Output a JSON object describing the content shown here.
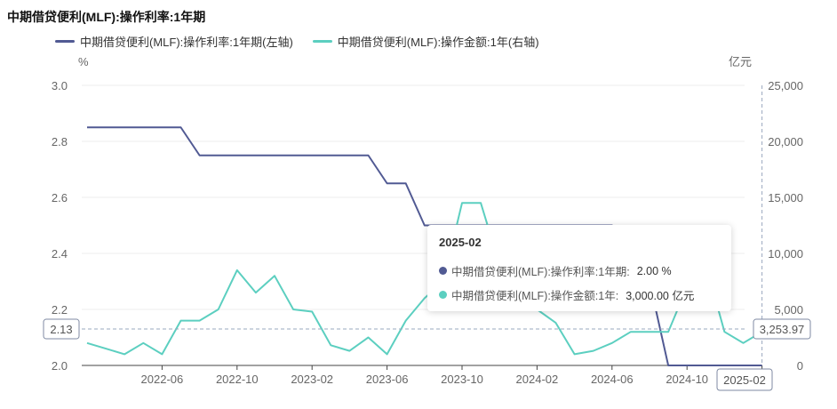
{
  "title": "中期借贷便利(MLF):操作利率:1年期",
  "colors": {
    "rate": "#515a93",
    "amount": "#5ccfc0",
    "axis": "#666666",
    "grid": "#eeeeee",
    "crosshair": "#9aa8bf"
  },
  "legend": [
    {
      "label": "中期借贷便利(MLF):操作利率:1年期(左轴)",
      "color": "#515a93"
    },
    {
      "label": "中期借贷便利(MLF):操作金额:1年(右轴)",
      "color": "#5ccfc0"
    }
  ],
  "tooltip": {
    "title": "2025-02",
    "rows": [
      {
        "label": "中期借贷便利(MLF):操作利率:1年期:",
        "value": "2.00 %",
        "color": "#515a93"
      },
      {
        "label": "中期借贷便利(MLF):操作金额:1年:",
        "value": "3,000.00 亿元",
        "color": "#5ccfc0"
      }
    ]
  },
  "pointer": {
    "left_label": "2.13",
    "right_label": "3,253.97",
    "x_label": "2025-02"
  },
  "chart_data": {
    "type": "line",
    "left_axis": {
      "unit": "%",
      "min": 2.0,
      "max": 3.0,
      "ticks": [
        "3.0",
        "2.8",
        "2.6",
        "2.4",
        "2.2",
        "2.0"
      ]
    },
    "right_axis": {
      "unit": "亿元",
      "min": 0,
      "max": 25000,
      "ticks": [
        "25,000",
        "20,000",
        "15,000",
        "10,000",
        "5,000",
        "0"
      ]
    },
    "x_ticks": [
      "2022-06",
      "2022-10",
      "2023-02",
      "2023-06",
      "2023-10",
      "2024-02",
      "2024-06",
      "2024-10",
      "2025-02"
    ],
    "x": [
      "2022-02",
      "2022-03",
      "2022-04",
      "2022-05",
      "2022-06",
      "2022-07",
      "2022-08",
      "2022-09",
      "2022-10",
      "2022-11",
      "2022-12",
      "2023-01",
      "2023-02",
      "2023-03",
      "2023-04",
      "2023-05",
      "2023-06",
      "2023-07",
      "2023-08",
      "2023-09",
      "2023-10",
      "2023-11",
      "2023-12",
      "2024-01",
      "2024-02",
      "2024-03",
      "2024-04",
      "2024-05",
      "2024-06",
      "2024-07",
      "2024-08",
      "2024-09",
      "2024-10",
      "2024-11",
      "2024-12",
      "2025-01",
      "2025-02"
    ],
    "series": [
      {
        "name": "中期借贷便利(MLF):操作利率:1年期",
        "axis": "left",
        "values": [
          2.85,
          2.85,
          2.85,
          2.85,
          2.85,
          2.85,
          2.75,
          2.75,
          2.75,
          2.75,
          2.75,
          2.75,
          2.75,
          2.75,
          2.75,
          2.75,
          2.65,
          2.65,
          2.5,
          2.5,
          2.5,
          2.5,
          2.5,
          2.5,
          2.5,
          2.5,
          2.5,
          2.5,
          2.5,
          2.3,
          2.3,
          2.0,
          2.0,
          2.0,
          2.0,
          2.0,
          2.0
        ]
      },
      {
        "name": "中期借贷便利(MLF):操作金额:1年",
        "axis": "right",
        "values": [
          2000,
          1500,
          1000,
          2000,
          1000,
          4000,
          4000,
          5000,
          8500,
          6500,
          8000,
          5000,
          4800,
          1800,
          1300,
          2500,
          1000,
          4000,
          6000,
          7500,
          14500,
          14500,
          9000,
          6000,
          5000,
          3800,
          1000,
          1300,
          2000,
          3000,
          3000,
          3000,
          7000,
          9000,
          3000,
          2000,
          3000
        ]
      }
    ]
  }
}
